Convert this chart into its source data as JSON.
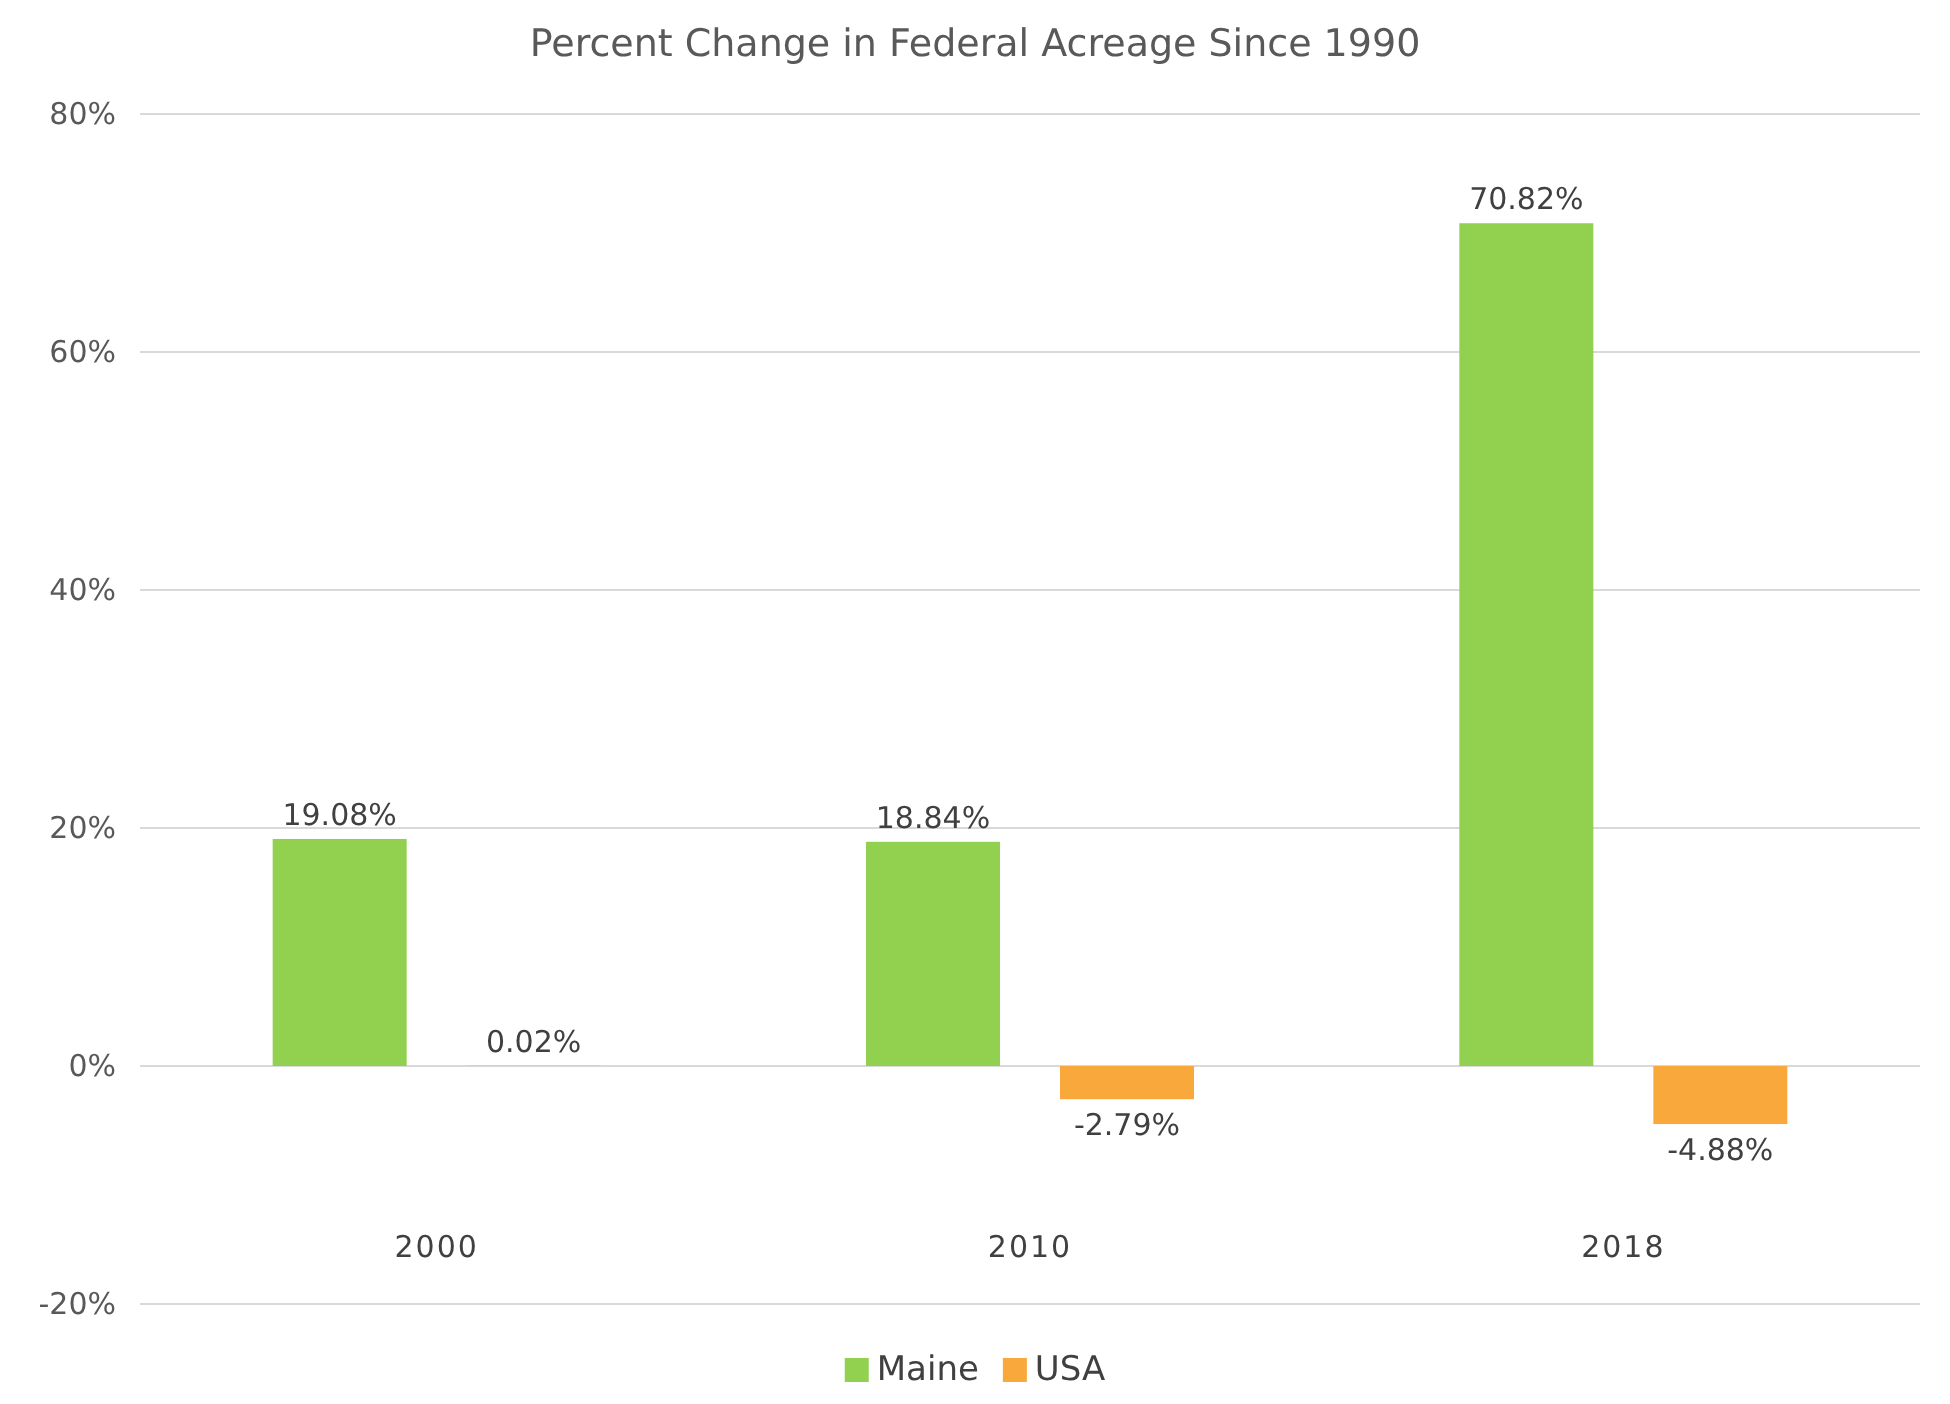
{
  "chart_data": {
    "type": "bar",
    "title": "Percent Change in Federal Acreage Since 1990",
    "categories": [
      "2000",
      "2010",
      "2018"
    ],
    "series": [
      {
        "name": "Maine",
        "color": "#92d050",
        "values": [
          19.08,
          18.84,
          70.82
        ],
        "value_labels": [
          "19.08%",
          "18.84%",
          "70.82%"
        ]
      },
      {
        "name": "USA",
        "color": "#f9a93c",
        "values": [
          0.02,
          -2.79,
          -4.88
        ],
        "value_labels": [
          "0.02%",
          "-2.79%",
          "-4.88%"
        ]
      }
    ],
    "ylim": [
      -20,
      80
    ],
    "yticks": [
      {
        "value": -20,
        "label": "-20%"
      },
      {
        "value": 0,
        "label": "0%"
      },
      {
        "value": 20,
        "label": "20%"
      },
      {
        "value": 40,
        "label": "40%"
      },
      {
        "value": 60,
        "label": "60%"
      },
      {
        "value": 80,
        "label": "80%"
      }
    ],
    "grid": "y",
    "legend": "bottom"
  }
}
